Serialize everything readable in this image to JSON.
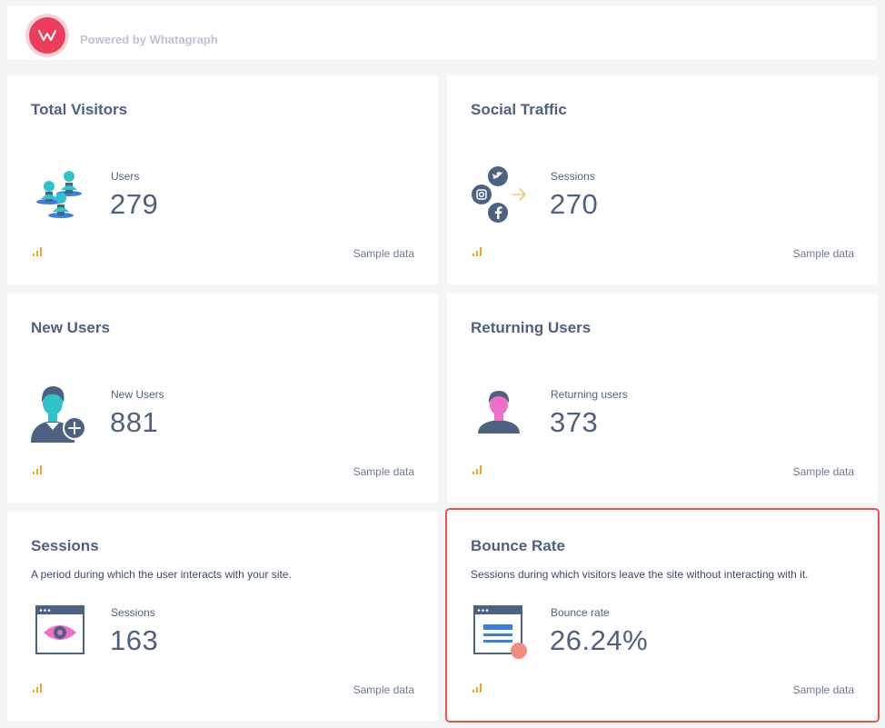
{
  "header": {
    "powered_by": "Powered by Whatagraph",
    "logo_letter": "W"
  },
  "colors": {
    "accent": "#ea3e5c",
    "text": "#4d6280",
    "teal": "#2fc4cc",
    "pink": "#ef6fc7",
    "highlight_border": "#e6554c",
    "signal_orange": "#f5a623"
  },
  "cards": [
    {
      "title": "Total Visitors",
      "description": "",
      "metric_label": "Users",
      "metric_value": "279",
      "footer": "Sample data",
      "icon": "users-group-icon"
    },
    {
      "title": "Social Traffic",
      "description": "",
      "metric_label": "Sessions",
      "metric_value": "270",
      "footer": "Sample data",
      "icon": "social-traffic-icon"
    },
    {
      "title": "New Users",
      "description": "",
      "metric_label": "New Users",
      "metric_value": "881",
      "footer": "Sample data",
      "icon": "new-user-icon"
    },
    {
      "title": "Returning Users",
      "description": "",
      "metric_label": "Returning users",
      "metric_value": "373",
      "footer": "Sample data",
      "icon": "returning-user-icon"
    },
    {
      "title": "Sessions",
      "description": "A period during which the user interacts with your site.",
      "metric_label": "Sessions",
      "metric_value": "163",
      "footer": "Sample data",
      "icon": "session-eye-icon"
    },
    {
      "title": "Bounce Rate",
      "description": "Sessions during which visitors leave the site without interacting with it.",
      "metric_label": "Bounce rate",
      "metric_value": "26.24%",
      "footer": "Sample data",
      "icon": "bounce-rate-icon"
    }
  ]
}
